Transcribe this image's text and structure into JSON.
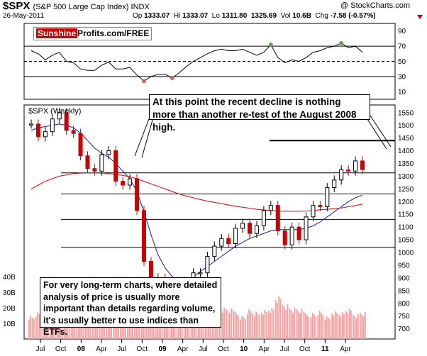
{
  "header": {
    "ticker": "$SPX",
    "description": "(S&P 500 Large Cap Index) INDX",
    "copyright": "@ StockCharts.com",
    "date": "26-May-2011",
    "open_label": "Op",
    "open": "1333.07",
    "high_label": "Hi",
    "high": "1333.07",
    "low_label": "Lo",
    "low": "1311.80",
    "close": "1325.69",
    "volume_label": "Vol",
    "volume": "10.6B",
    "change_label": "Chg",
    "change": "-7.58 (-0.57%)"
  },
  "brand": {
    "part1": "Sunshine",
    "part2": "Profits.com/FREE"
  },
  "colors": {
    "up_candle": "#000000",
    "down_candle": "#cc0000",
    "ma_short": "#1a1a99",
    "ma_long": "#dd0000",
    "volume_bar": "#f2a0a0",
    "rsi_line": "#000000",
    "rsi_fill_overbought": "#669966",
    "rsi_fill_oversold": "#cc6666"
  },
  "annotations": {
    "top": "At this point the recent decline is nothing more than another re-test of the August 2008 high.",
    "bottom": "For very long-term charts, where detailed analysis of price is usually more important than details regarding volume, it's usually better to use indices than ETFs."
  },
  "chart_data": [
    {
      "type": "line",
      "title": "",
      "panel": "RSI",
      "y_ticks": [
        10,
        30,
        50,
        70,
        90
      ],
      "ylim": [
        0,
        100
      ],
      "reference_lines": [
        70,
        50,
        30
      ],
      "x": [
        "2007-06",
        "2007-07",
        "2007-08",
        "2007-09",
        "2007-10",
        "2007-11",
        "2007-12",
        "2008-01",
        "2008-02",
        "2008-03",
        "2008-04",
        "2008-05",
        "2008-06",
        "2008-07",
        "2008-08",
        "2008-09",
        "2008-10",
        "2008-11",
        "2008-12",
        "2009-01",
        "2009-02",
        "2009-03",
        "2009-04",
        "2009-05",
        "2009-06",
        "2009-07",
        "2009-08",
        "2009-09",
        "2009-10",
        "2009-11",
        "2009-12",
        "2010-01",
        "2010-02",
        "2010-03",
        "2010-04",
        "2010-05",
        "2010-06",
        "2010-07",
        "2010-08",
        "2010-09",
        "2010-10",
        "2010-11",
        "2010-12",
        "2011-01",
        "2011-02",
        "2011-03",
        "2011-04",
        "2011-05"
      ],
      "values": [
        64,
        60,
        52,
        58,
        62,
        50,
        48,
        40,
        38,
        38,
        45,
        49,
        40,
        40,
        42,
        32,
        24,
        30,
        33,
        33,
        28,
        35,
        43,
        50,
        55,
        60,
        64,
        66,
        64,
        64,
        66,
        62,
        58,
        62,
        72,
        55,
        48,
        52,
        50,
        55,
        62,
        64,
        68,
        70,
        74,
        68,
        70,
        62
      ]
    },
    {
      "type": "candlestick",
      "title": "$SPX (Weekly)",
      "y_ticks": [
        700,
        750,
        800,
        850,
        900,
        950,
        1000,
        1050,
        1100,
        1150,
        1200,
        1250,
        1300,
        1350,
        1400,
        1450,
        1500,
        1550
      ],
      "ylim": [
        660,
        1580
      ],
      "x_ticks": [
        "Jul",
        "Oct",
        "08",
        "Apr",
        "Jul",
        "Oct",
        "09",
        "Apr",
        "Jul",
        "Oct",
        "10",
        "Apr",
        "Jul",
        "Oct",
        "11",
        "Apr"
      ],
      "x": [
        "2007-06",
        "2007-07",
        "2007-08",
        "2007-09",
        "2007-10",
        "2007-11",
        "2007-12",
        "2008-01",
        "2008-02",
        "2008-03",
        "2008-04",
        "2008-05",
        "2008-06",
        "2008-07",
        "2008-08",
        "2008-09",
        "2008-10",
        "2008-11",
        "2008-12",
        "2009-01",
        "2009-02",
        "2009-03",
        "2009-04",
        "2009-05",
        "2009-06",
        "2009-07",
        "2009-08",
        "2009-09",
        "2009-10",
        "2009-11",
        "2009-12",
        "2010-01",
        "2010-02",
        "2010-03",
        "2010-04",
        "2010-05",
        "2010-06",
        "2010-07",
        "2010-08",
        "2010-09",
        "2010-10",
        "2010-11",
        "2010-12",
        "2011-01",
        "2011-02",
        "2011-03",
        "2011-04",
        "2011-05"
      ],
      "close": [
        1505,
        1455,
        1475,
        1525,
        1550,
        1480,
        1468,
        1380,
        1330,
        1320,
        1385,
        1400,
        1280,
        1265,
        1290,
        1165,
        965,
        895,
        900,
        825,
        735,
        795,
        870,
        920,
        920,
        985,
        1025,
        1055,
        1035,
        1095,
        1115,
        1075,
        1105,
        1165,
        1185,
        1085,
        1030,
        1100,
        1050,
        1140,
        1185,
        1180,
        1255,
        1285,
        1325,
        1320,
        1360,
        1326
      ],
      "support_lines": [
        1440,
        1313,
        1230,
        1130,
        1020
      ],
      "series": [
        {
          "name": "short moving average",
          "values": [
            1480,
            1490,
            1495,
            1500,
            1505,
            1500,
            1490,
            1470,
            1440,
            1410,
            1390,
            1375,
            1350,
            1320,
            1290,
            1240,
            1160,
            1070,
            990,
            940,
            905,
            890,
            890,
            905,
            925,
            945,
            965,
            985,
            1005,
            1025,
            1040,
            1055,
            1065,
            1075,
            1085,
            1090,
            1090,
            1090,
            1090,
            1095,
            1105,
            1120,
            1140,
            1160,
            1180,
            1200,
            1215,
            1225
          ]
        },
        {
          "name": "long moving average",
          "values": [
            1250,
            1265,
            1280,
            1290,
            1300,
            1305,
            1310,
            1312,
            1313,
            1313,
            1312,
            1310,
            1307,
            1303,
            1298,
            1290,
            1280,
            1270,
            1260,
            1250,
            1240,
            1230,
            1222,
            1215,
            1208,
            1202,
            1197,
            1192,
            1187,
            1182,
            1178,
            1174,
            1170,
            1167,
            1165,
            1163,
            1162,
            1162,
            1162,
            1163,
            1165,
            1168,
            1170,
            1172,
            1175,
            1180,
            1185,
            1190
          ]
        }
      ]
    },
    {
      "type": "bar",
      "title": "",
      "panel": "Volume",
      "y_ticks": [
        "10B",
        "20B",
        "30B",
        "40B"
      ],
      "x": [
        "2007-06",
        "2007-07",
        "2007-08",
        "2007-09",
        "2007-10",
        "2007-11",
        "2007-12",
        "2008-01",
        "2008-02",
        "2008-03",
        "2008-04",
        "2008-05",
        "2008-06",
        "2008-07",
        "2008-08",
        "2008-09",
        "2008-10",
        "2008-11",
        "2008-12",
        "2009-01",
        "2009-02",
        "2009-03",
        "2009-04",
        "2009-05",
        "2009-06",
        "2009-07",
        "2009-08",
        "2009-09",
        "2009-10",
        "2009-11",
        "2009-12",
        "2010-01",
        "2010-02",
        "2010-03",
        "2010-04",
        "2010-05",
        "2010-06",
        "2010-07",
        "2010-08",
        "2010-09",
        "2010-10",
        "2010-11",
        "2010-12",
        "2011-01",
        "2011-02",
        "2011-03",
        "2011-04",
        "2011-05"
      ],
      "values": [
        16,
        18,
        24,
        20,
        18,
        22,
        17,
        26,
        22,
        24,
        20,
        17,
        21,
        24,
        18,
        30,
        38,
        33,
        24,
        26,
        30,
        34,
        29,
        27,
        24,
        21,
        23,
        21,
        20,
        19,
        16,
        20,
        18,
        20,
        21,
        28,
        24,
        21,
        20,
        18,
        18,
        19,
        15,
        19,
        18,
        20,
        17,
        18
      ]
    }
  ]
}
